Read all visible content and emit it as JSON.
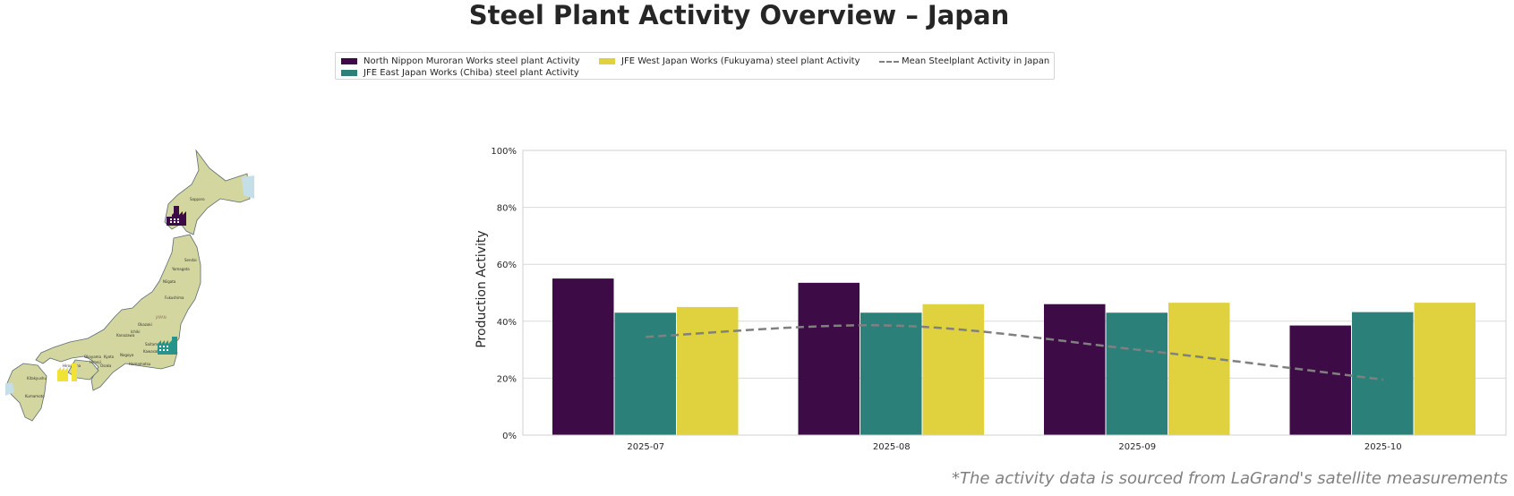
{
  "title": "Steel Plant Activity Overview – Japan",
  "legend": {
    "items": [
      {
        "label": "North Nippon Muroran Works steel plant Activity",
        "color": "#3d0b45"
      },
      {
        "label": "JFE East Japan Works (Chiba) steel plant Activity",
        "color": "#2b8079"
      },
      {
        "label": "JFE West Japan Works (Fukuyama) steel plant Activity",
        "color": "#e0d13f"
      },
      {
        "label": "Mean Steelplant Activity in Japan",
        "color": "#808080"
      }
    ]
  },
  "map": {
    "labels": [
      "Sapporo",
      "Sendai",
      "JAPAN",
      "Saitama",
      "Kawasaki",
      "Nagoya",
      "Kyoto",
      "Osaka",
      "Hiroshima",
      "Kitakyushu",
      "Kumamoto",
      "Niigata",
      "Kanazawa",
      "Hamamatsu",
      "Okayama",
      "Himeji",
      "Yamagata",
      "Fukushima",
      "Ichiki",
      "Okazaki"
    ],
    "colors": {
      "land": "#d9dba6",
      "water": "#c4dfe8",
      "border": "#5d6b73"
    }
  },
  "chart_data": {
    "type": "bar",
    "categories": [
      "2025-07",
      "2025-08",
      "2025-09",
      "2025-10"
    ],
    "series": [
      {
        "name": "North Nippon Muroran Works steel plant Activity",
        "color": "#3d0b45",
        "values": [
          55,
          53.5,
          46,
          38.5
        ]
      },
      {
        "name": "JFE East Japan Works (Chiba) steel plant Activity",
        "color": "#2b8079",
        "values": [
          43,
          43,
          43,
          43.2
        ]
      },
      {
        "name": "JFE West Japan Works (Fukuyama) steel plant Activity",
        "color": "#e0d13f",
        "values": [
          45,
          46,
          46.5,
          46.5
        ]
      }
    ],
    "mean_line": {
      "name": "Mean Steelplant Activity in Japan",
      "color": "#808080",
      "values": [
        34.5,
        38.5,
        30,
        19.5
      ]
    },
    "ylabel": "Production Activity",
    "xlabel": "",
    "ylim": [
      0,
      100
    ],
    "yticks": [
      "0%",
      "20%",
      "40%",
      "60%",
      "80%",
      "100%"
    ],
    "ytick_values": [
      0,
      20,
      40,
      60,
      80,
      100
    ],
    "grid": true
  },
  "footnote": "*The activity data is sourced from LaGrand's satellite measurements"
}
